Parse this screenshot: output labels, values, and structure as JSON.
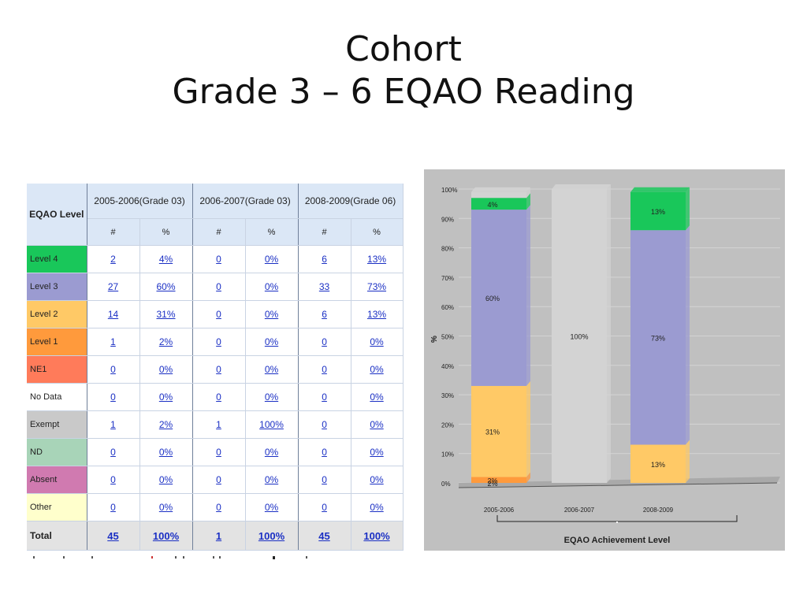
{
  "slide": {
    "title_line1": "Cohort",
    "title_line2": "Grade 3 – 6 EQAO Reading"
  },
  "table": {
    "level_header": "EQAO Level",
    "groups": [
      "2005-2006(Grade 03)",
      "2006-2007(Grade 03)",
      "2008-2009(Grade 06)"
    ],
    "sub_headers": [
      "#",
      "%",
      "#",
      "%",
      "#",
      "%"
    ],
    "rows": [
      {
        "label": "Level 4",
        "color": "#19c75a",
        "cells": [
          "2",
          "4%",
          "0",
          "0%",
          "6",
          "13%"
        ]
      },
      {
        "label": "Level 3",
        "color": "#9b9bd1",
        "cells": [
          "27",
          "60%",
          "0",
          "0%",
          "33",
          "73%"
        ]
      },
      {
        "label": "Level 2",
        "color": "#ffc966",
        "cells": [
          "14",
          "31%",
          "0",
          "0%",
          "6",
          "13%"
        ]
      },
      {
        "label": "Level 1",
        "color": "#ff9a3c",
        "cells": [
          "1",
          "2%",
          "0",
          "0%",
          "0",
          "0%"
        ]
      },
      {
        "label": "NE1",
        "color": "#ff7b5a",
        "cells": [
          "0",
          "0%",
          "0",
          "0%",
          "0",
          "0%"
        ]
      },
      {
        "label": "No Data",
        "color": "#ffffff",
        "cells": [
          "0",
          "0%",
          "0",
          "0%",
          "0",
          "0%"
        ]
      },
      {
        "label": "Exempt",
        "color": "#c9c9c9",
        "cells": [
          "1",
          "2%",
          "1",
          "100%",
          "0",
          "0%"
        ]
      },
      {
        "label": "ND",
        "color": "#a8d4b8",
        "cells": [
          "0",
          "0%",
          "0",
          "0%",
          "0",
          "0%"
        ]
      },
      {
        "label": "Absent",
        "color": "#d07ab0",
        "cells": [
          "0",
          "0%",
          "0",
          "0%",
          "0",
          "0%"
        ]
      },
      {
        "label": "Other",
        "color": "#ffffcc",
        "cells": [
          "0",
          "0%",
          "0",
          "0%",
          "0",
          "0%"
        ]
      }
    ],
    "total": {
      "label": "Total",
      "cells": [
        "45",
        "100%",
        "1",
        "100%",
        "45",
        "100%"
      ]
    }
  },
  "chart_data": {
    "type": "bar",
    "stacked": true,
    "categories": [
      "2005-2006",
      "2006-2007",
      "2008-2009"
    ],
    "xlabel": "EQAO Achievement Level",
    "ylabel": "%",
    "ylim": [
      0,
      100
    ],
    "yticks": [
      "0%",
      "10%",
      "20%",
      "30%",
      "40%",
      "50%",
      "60%",
      "70%",
      "80%",
      "90%",
      "100%"
    ],
    "grid": true,
    "series": [
      {
        "color": "#ff9a3c",
        "values": [
          2,
          0,
          0
        ],
        "labels": [
          "2%",
          "",
          ""
        ]
      },
      {
        "color": "#ffc966",
        "values": [
          31,
          0,
          13
        ],
        "labels": [
          "31%",
          "",
          "13%"
        ]
      },
      {
        "color": "#9b9bd1",
        "values": [
          60,
          0,
          73
        ],
        "labels": [
          "60%",
          "",
          "73%"
        ]
      },
      {
        "color": "#19c75a",
        "values": [
          4,
          0,
          13
        ],
        "labels": [
          "4%",
          "",
          "13%"
        ]
      },
      {
        "color": "#d3d3d3",
        "values": [
          2,
          100,
          0
        ],
        "labels": [
          "",
          "100%",
          ""
        ]
      }
    ],
    "extra_labels": [
      {
        "category": 0,
        "text": "2%"
      }
    ]
  }
}
